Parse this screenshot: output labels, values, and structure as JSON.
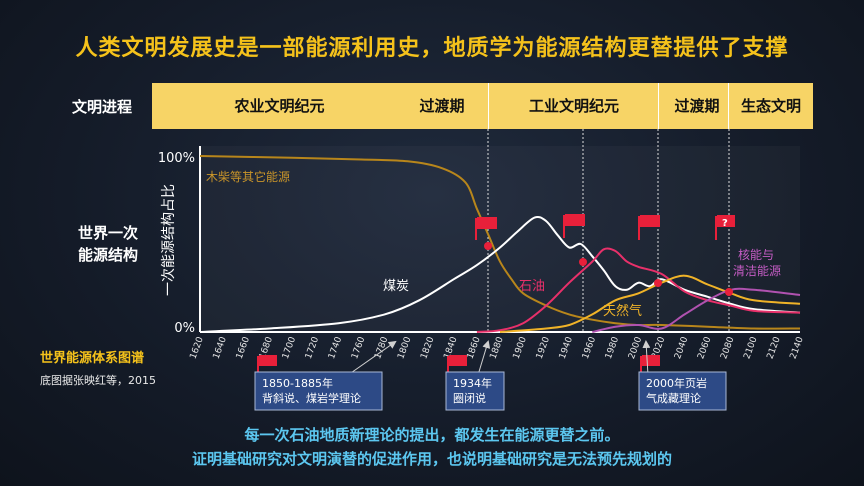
{
  "title": "人类文明发展史是一部能源利用史，地质学为能源结构更替提供了支撑",
  "era_row": {
    "label": "文明进程",
    "eras": [
      "农业文明纪元",
      "过渡期",
      "工业文明纪元",
      "过渡期",
      "生态文明"
    ]
  },
  "side_label": [
    "世界一次",
    "能源结构"
  ],
  "source_title": "世界能源体系图谱",
  "source_note": "底图据张映红等，2015",
  "conclusion": [
    "每一次石油地质新理论的提出，都发生在能源更替之前。",
    "证明基础研究对文明演替的促进作用，也说明基础研究是无法预先规划的"
  ],
  "theories": [
    "1850-1885年\n背斜说、煤岩学理论",
    "1934年\n圈闭说",
    "2000年页岩\n气成藏理论"
  ],
  "chart_data": {
    "type": "line",
    "ylabel": "一次能源结构占比",
    "yticks": [
      "100%",
      "0%"
    ],
    "ylim": [
      0,
      100
    ],
    "xlim": [
      1620,
      2140
    ],
    "x_ticks": [
      1620,
      1640,
      1660,
      1680,
      1700,
      1720,
      1740,
      1760,
      1780,
      1800,
      1820,
      1840,
      1860,
      1880,
      1900,
      1920,
      1940,
      1960,
      1980,
      2000,
      2020,
      2040,
      2060,
      2080,
      2100,
      2120,
      2140
    ],
    "series": [
      {
        "name": "木柴等其它能源",
        "color": "#b8861b",
        "points": [
          [
            1620,
            100
          ],
          [
            1700,
            99
          ],
          [
            1760,
            98
          ],
          [
            1800,
            97
          ],
          [
            1830,
            93
          ],
          [
            1850,
            85
          ],
          [
            1860,
            70
          ],
          [
            1870,
            55
          ],
          [
            1880,
            40
          ],
          [
            1890,
            30
          ],
          [
            1900,
            22
          ],
          [
            1920,
            15
          ],
          [
            1940,
            10
          ],
          [
            1960,
            7
          ],
          [
            1980,
            5
          ],
          [
            2000,
            4
          ],
          [
            2020,
            4
          ],
          [
            2060,
            3
          ],
          [
            2100,
            2
          ],
          [
            2140,
            2
          ]
        ]
      },
      {
        "name": "煤炭",
        "color": "#ffffff",
        "points": [
          [
            1620,
            0
          ],
          [
            1680,
            2
          ],
          [
            1740,
            5
          ],
          [
            1780,
            10
          ],
          [
            1810,
            18
          ],
          [
            1840,
            30
          ],
          [
            1860,
            38
          ],
          [
            1880,
            48
          ],
          [
            1895,
            57
          ],
          [
            1910,
            65
          ],
          [
            1920,
            63
          ],
          [
            1930,
            55
          ],
          [
            1940,
            48
          ],
          [
            1950,
            50
          ],
          [
            1960,
            43
          ],
          [
            1970,
            35
          ],
          [
            1980,
            26
          ],
          [
            1990,
            24
          ],
          [
            2000,
            28
          ],
          [
            2010,
            26
          ],
          [
            2020,
            30
          ],
          [
            2040,
            24
          ],
          [
            2060,
            20
          ],
          [
            2080,
            16
          ],
          [
            2100,
            13
          ],
          [
            2140,
            11
          ]
        ]
      },
      {
        "name": "石油",
        "color": "#e8306a",
        "points": [
          [
            1860,
            0
          ],
          [
            1880,
            1
          ],
          [
            1900,
            5
          ],
          [
            1920,
            15
          ],
          [
            1940,
            28
          ],
          [
            1960,
            40
          ],
          [
            1970,
            47
          ],
          [
            1980,
            46
          ],
          [
            1990,
            40
          ],
          [
            2000,
            37
          ],
          [
            2020,
            33
          ],
          [
            2040,
            23
          ],
          [
            2060,
            18
          ],
          [
            2080,
            15
          ],
          [
            2100,
            12
          ],
          [
            2140,
            11
          ]
        ]
      },
      {
        "name": "天然气",
        "color": "#f0b328",
        "points": [
          [
            1880,
            0
          ],
          [
            1920,
            2
          ],
          [
            1940,
            4
          ],
          [
            1960,
            10
          ],
          [
            1980,
            18
          ],
          [
            2000,
            22
          ],
          [
            2020,
            28
          ],
          [
            2040,
            32
          ],
          [
            2060,
            27
          ],
          [
            2080,
            22
          ],
          [
            2100,
            18
          ],
          [
            2140,
            16
          ]
        ]
      },
      {
        "name": "核能与清洁能源",
        "color": "#b052b0",
        "points": [
          [
            1960,
            0
          ],
          [
            1980,
            3
          ],
          [
            2000,
            4
          ],
          [
            2020,
            2
          ],
          [
            2040,
            10
          ],
          [
            2060,
            18
          ],
          [
            2080,
            24
          ],
          [
            2100,
            24
          ],
          [
            2140,
            21
          ]
        ]
      }
    ]
  }
}
